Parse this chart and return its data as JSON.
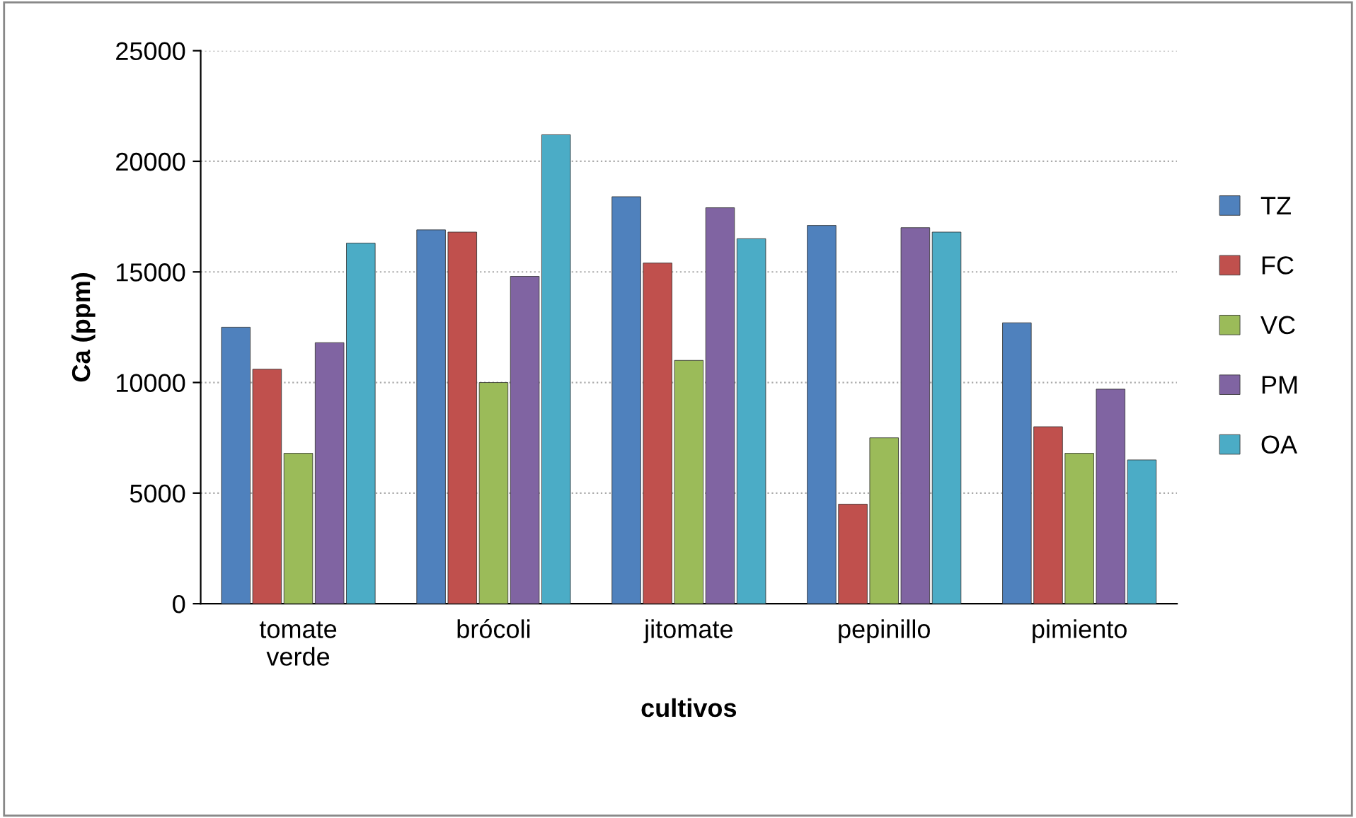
{
  "chart_data": {
    "type": "bar",
    "xlabel": "cultivos",
    "ylabel": "Ca (ppm)",
    "categories": [
      "tomate verde",
      "brócoli",
      "jitomate",
      "pepinillo",
      "pimiento"
    ],
    "series": [
      {
        "name": "TZ",
        "color": "#4f81bd",
        "values": [
          12500,
          16900,
          18400,
          17100,
          12700
        ]
      },
      {
        "name": "FC",
        "color": "#c0504d",
        "values": [
          10600,
          16800,
          15400,
          4500,
          8000
        ]
      },
      {
        "name": "VC",
        "color": "#9bbb59",
        "values": [
          6800,
          10000,
          11000,
          7500,
          6800
        ]
      },
      {
        "name": "PM",
        "color": "#8064a2",
        "values": [
          11800,
          14800,
          17900,
          17000,
          9700
        ]
      },
      {
        "name": "OA",
        "color": "#4bacc6",
        "values": [
          16300,
          21200,
          16500,
          16800,
          6500
        ]
      }
    ],
    "ylim": [
      0,
      25000
    ],
    "yticks": [
      0,
      5000,
      10000,
      15000,
      20000,
      25000
    ],
    "grid": "y",
    "legend": "right"
  }
}
